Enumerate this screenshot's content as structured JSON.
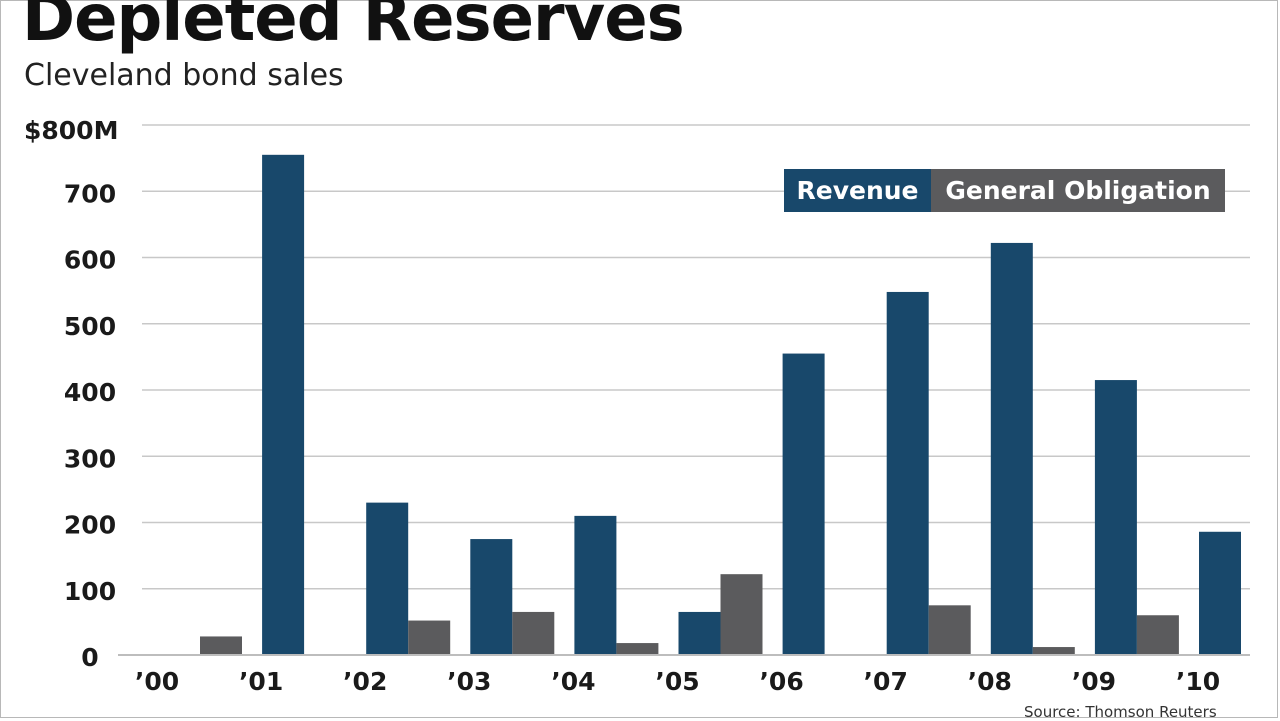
{
  "chart_data": {
    "type": "bar",
    "title": "Depleted Reserves",
    "subtitle": "Cleveland bond sales",
    "categories": [
      "’00",
      "’01",
      "’02",
      "’03",
      "’04",
      "’05",
      "’06",
      "’07",
      "’08",
      "’09",
      "’10"
    ],
    "series": [
      {
        "name": "Revenue",
        "color": "#18486b",
        "values": [
          0,
          755,
          230,
          175,
          210,
          65,
          455,
          548,
          622,
          415,
          186
        ]
      },
      {
        "name": "General Obligation",
        "color": "#5b5b5d",
        "values": [
          28,
          0,
          52,
          65,
          18,
          122,
          0,
          75,
          12,
          60,
          0
        ]
      }
    ],
    "yticks": [
      0,
      100,
      200,
      300,
      400,
      500,
      600,
      700,
      800
    ],
    "ytick_labels": [
      "0",
      "100",
      "200",
      "300",
      "400",
      "500",
      "600",
      "700",
      "$800M"
    ],
    "ylim": [
      0,
      800
    ],
    "legend_position": "top-right",
    "grid": true,
    "source": "Source: Thomson Reuters"
  }
}
